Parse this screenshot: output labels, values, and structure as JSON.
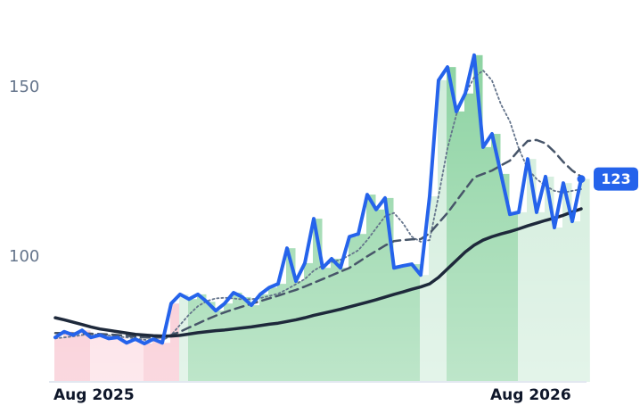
{
  "chart_data": {
    "type": "line",
    "categories": [
      "Aug 2025",
      null,
      null,
      null,
      null,
      null,
      null,
      null,
      null,
      null,
      null,
      null,
      null,
      null,
      null,
      null,
      null,
      null,
      null,
      null,
      null,
      null,
      null,
      null,
      null,
      null,
      null,
      null,
      null,
      null,
      null,
      null,
      null,
      null,
      null,
      null,
      null,
      null,
      null,
      null,
      null,
      null,
      null,
      null,
      null,
      null,
      null,
      null,
      null,
      "Aug 2026",
      null,
      null,
      null,
      null,
      null,
      null,
      null,
      null,
      null,
      null
    ],
    "ylim": [
      63.2,
      170.5
    ],
    "yticks": [
      100,
      150
    ],
    "series": [
      {
        "color": "#2563eb",
        "style": "solid",
        "width": 4,
        "values": [
          76.3,
          78,
          77,
          78.4,
          76.3,
          77,
          76,
          76.3,
          74.7,
          75.8,
          74.5,
          75.8,
          74.7,
          86.3,
          89,
          87.6,
          89,
          86.8,
          84.2,
          86.3,
          89.5,
          88.2,
          85.8,
          89,
          91,
          92.1,
          102.6,
          92.9,
          98.2,
          111.3,
          96.8,
          99.5,
          96.8,
          106,
          106.8,
          118.4,
          114,
          117.4,
          96.8,
          97.4,
          97.9,
          94.7,
          117.9,
          152.1,
          156,
          142.9,
          148.2,
          159.5,
          132.4,
          136.3,
          124.5,
          112.6,
          113.2,
          128.9,
          113.2,
          123.7,
          108.7,
          121.8,
          110.5,
          123
        ]
      },
      {
        "color": "#1e293b",
        "style": "solid",
        "width": 3.5,
        "values": [
          82.1,
          81.5,
          80.8,
          80.1,
          79.4,
          78.8,
          78.4,
          78.0,
          77.6,
          77.2,
          77.0,
          76.8,
          76.7,
          76.7,
          76.9,
          77.3,
          77.7,
          78.0,
          78.3,
          78.5,
          78.8,
          79.1,
          79.4,
          79.8,
          80.2,
          80.5,
          81.0,
          81.5,
          82.1,
          82.8,
          83.4,
          84.0,
          84.6,
          85.3,
          86.0,
          86.7,
          87.4,
          88.2,
          89.0,
          89.7,
          90.5,
          91.2,
          92.1,
          94.0,
          96.5,
          99.0,
          101.5,
          103.5,
          105.0,
          106.0,
          106.8,
          107.5,
          108.3,
          109.2,
          110.0,
          110.8,
          111.5,
          112.3,
          113.3,
          114.2
        ]
      },
      {
        "color": "#475569",
        "style": "dashed",
        "width": 2.5,
        "values": [
          77.6,
          77.6,
          77.5,
          77.5,
          77.4,
          77.3,
          77.2,
          77.0,
          76.8,
          76.5,
          76.3,
          76.2,
          76.3,
          77.0,
          78.0,
          79.2,
          80.4,
          81.6,
          82.7,
          83.7,
          84.6,
          85.4,
          86.2,
          87.0,
          87.8,
          88.6,
          89.5,
          90.3,
          91.3,
          92.4,
          93.5,
          94.6,
          95.7,
          96.8,
          98.5,
          100.2,
          101.8,
          103.4,
          104.7,
          105.0,
          105.2,
          105.3,
          107.0,
          110.0,
          113.0,
          116.5,
          120.0,
          123.5,
          124.5,
          125.5,
          127.0,
          128.4,
          131.5,
          134.2,
          134.5,
          133.5,
          131.0,
          128.0,
          125.5,
          123.7
        ]
      },
      {
        "color": "#64748b",
        "style": "dotted",
        "width": 1.8,
        "values": [
          76,
          76.3,
          76.6,
          77,
          77.2,
          77.1,
          76.9,
          76.6,
          76.3,
          76,
          75.6,
          75.4,
          75.3,
          77,
          80,
          83,
          85.5,
          87,
          87.8,
          88,
          87.8,
          87.5,
          87.6,
          87.9,
          88.5,
          89.2,
          90.5,
          92,
          93.5,
          96,
          97.5,
          98.5,
          99.2,
          100.5,
          102,
          105,
          108.5,
          112,
          113,
          110,
          106,
          104.5,
          105,
          118,
          132,
          142,
          148,
          153,
          155,
          152,
          145,
          140,
          132,
          126,
          123,
          121,
          119.5,
          119,
          119.5,
          120
        ]
      }
    ],
    "bar_colors": [
      "#f7b9c6",
      "#f7b9c6",
      "#f7b9c6",
      "#f7b9c6",
      "#fcd6de",
      "#fcd6de",
      "#fcd6de",
      "#fcd6de",
      "#fcd6de",
      "#fcd6de",
      "#f7b9c6",
      "#f7b9c6",
      "#f7b9c6",
      "#f7b9c6",
      "#cdebd8",
      "#88d19e",
      "#88d19e",
      "#88d19e",
      "#88d19e",
      "#88d19e",
      "#88d19e",
      "#88d19e",
      "#88d19e",
      "#88d19e",
      "#88d19e",
      "#88d19e",
      "#88d19e",
      "#88d19e",
      "#88d19e",
      "#88d19e",
      "#88d19e",
      "#88d19e",
      "#88d19e",
      "#88d19e",
      "#88d19e",
      "#88d19e",
      "#88d19e",
      "#88d19e",
      "#88d19e",
      "#88d19e",
      "#88d19e",
      "#cdebd8",
      "#cdebd8",
      "#cdebd8",
      "#88d19e",
      "#88d19e",
      "#88d19e",
      "#88d19e",
      "#88d19e",
      "#88d19e",
      "#88d19e",
      "#88d19e",
      "#cdebd8",
      "#cdebd8",
      "#cdebd8",
      "#cdebd8",
      "#cdebd8",
      "#cdebd8",
      "#cdebd8",
      "#cdebd8"
    ]
  }
}
